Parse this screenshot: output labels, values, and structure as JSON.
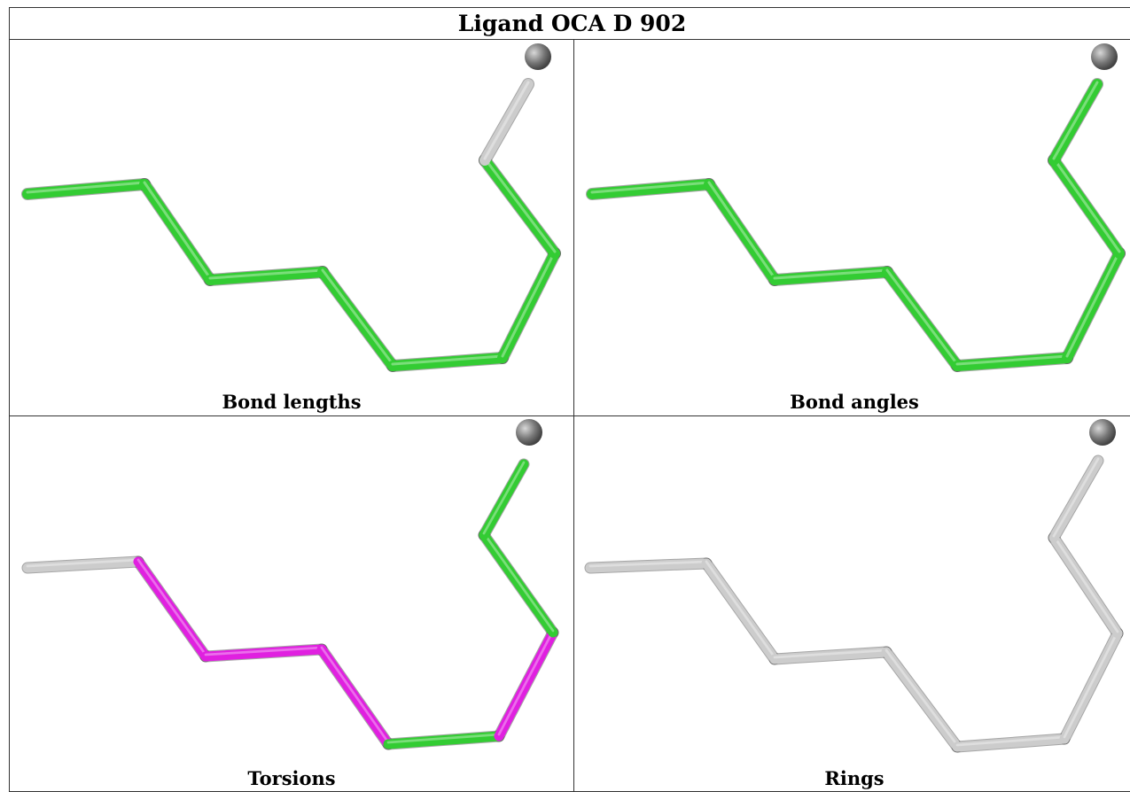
{
  "title": "Ligand OCA D 902",
  "panels": [
    {
      "id": "bond-lengths",
      "caption": "Bond lengths",
      "colors": [
        "green",
        "green",
        "green",
        "green",
        "green",
        "green",
        "green",
        "grey",
        "green"
      ]
    },
    {
      "id": "bond-angles",
      "caption": "Bond angles",
      "colors": [
        "green",
        "green",
        "green",
        "green",
        "green",
        "green",
        "green",
        "green",
        "green"
      ]
    },
    {
      "id": "torsions",
      "caption": "Torsions",
      "colors": [
        "grey",
        "magenta",
        "magenta",
        "magenta",
        "green",
        "magenta",
        "green",
        "green",
        "grey"
      ]
    },
    {
      "id": "rings",
      "caption": "Rings",
      "colors": [
        "grey",
        "grey",
        "grey",
        "grey",
        "grey",
        "grey",
        "grey",
        "grey",
        "grey"
      ]
    }
  ],
  "palette": {
    "green": "#33cc33",
    "grey": "#cccccc",
    "magenta": "#e020e0",
    "atom": "#777777"
  }
}
